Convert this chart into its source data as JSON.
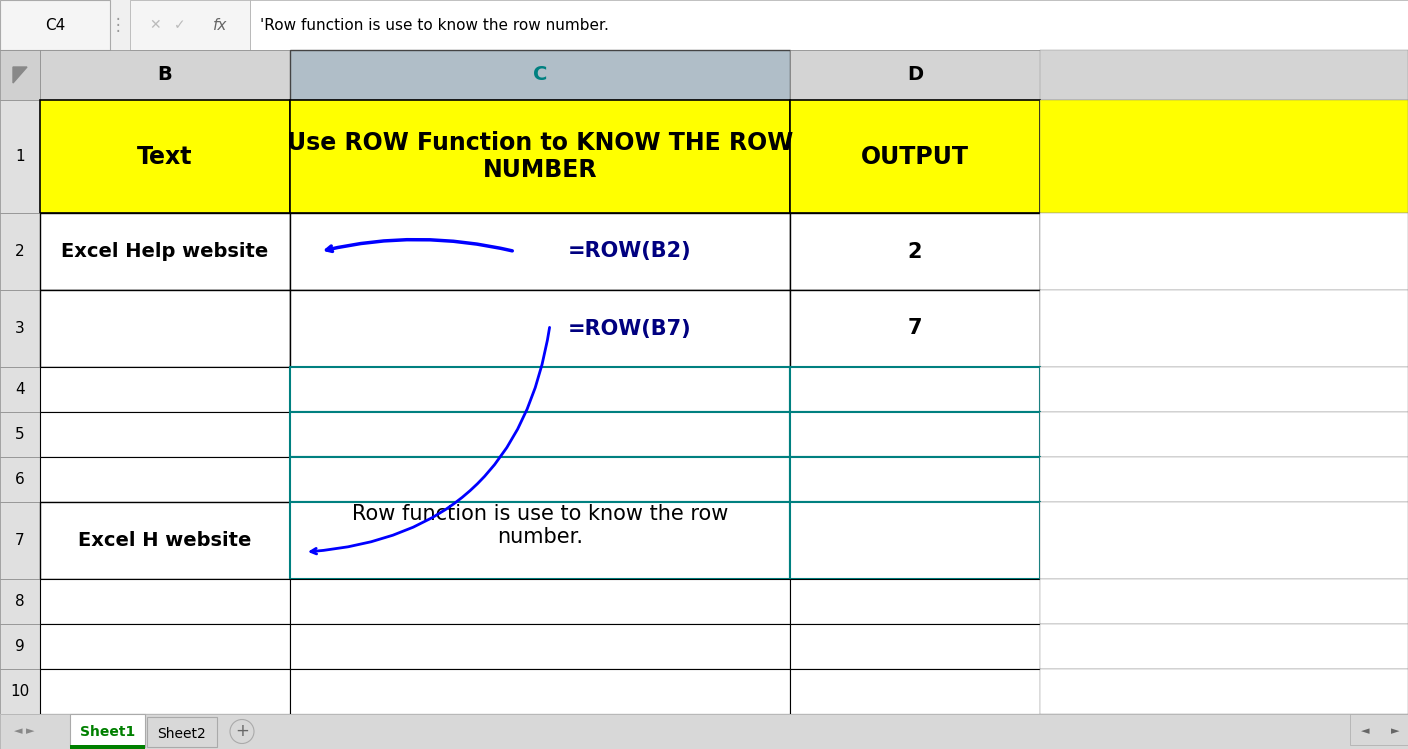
{
  "formula_bar_text": "'Row function is use to know the row number.",
  "cell_ref": "C4",
  "yellow_bg": "#ffff00",
  "teal_border_color": "#008080",
  "header_row_text_B": "Text",
  "header_row_text_C": "Use ROW Function to KNOW THE ROW\nNUMBER",
  "header_row_text_D": "OUTPUT",
  "row2_B": "Excel Help website",
  "row2_C": "=ROW(B2)",
  "row2_D": "2",
  "row3_C": "=ROW(B7)",
  "row3_D": "7",
  "row7_B": "Excel H website",
  "row7_C_text": "Row function is use to know the row\nnumber.",
  "tab_sheet1": "Sheet1",
  "tab_sheet2": "Sheet2",
  "formula_text_color": "#000000",
  "col_header_bg_normal": "#d4d4d4",
  "col_header_bg_selected": "#b8c8d8",
  "col_C_header_text_color": "#008080",
  "sheet_bg": "#e8e8e8",
  "cell_bg": "#ffffff",
  "row_num_bg": "#e0e0e0",
  "dark_border": "#555555",
  "light_border": "#aaaaaa",
  "black_border": "#000000"
}
